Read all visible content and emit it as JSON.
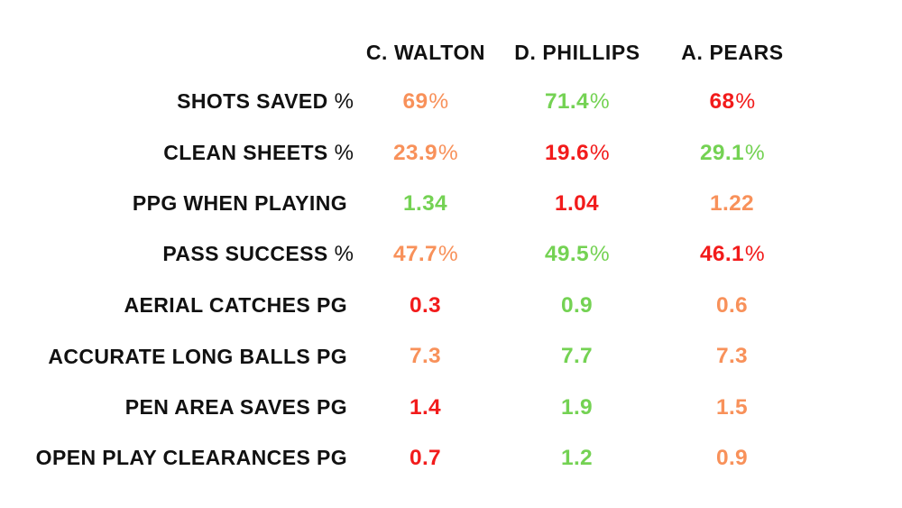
{
  "colors": {
    "orange": "#F8915A",
    "green": "#74D253",
    "red": "#F21B1B",
    "label_text": "#111111",
    "background": "#FFFFFF"
  },
  "header": {
    "players": [
      "C. WALTON",
      "D. PHILLIPS",
      "A. PEARS"
    ]
  },
  "rows": [
    {
      "label": "SHOTS SAVED",
      "label_suffix": "%",
      "values": [
        {
          "num": "69",
          "suffix": "%",
          "color": "orange"
        },
        {
          "num": "71.4",
          "suffix": "%",
          "color": "green"
        },
        {
          "num": "68",
          "suffix": "%",
          "color": "red"
        }
      ]
    },
    {
      "label": "CLEAN SHEETS",
      "label_suffix": "%",
      "values": [
        {
          "num": "23.9",
          "suffix": "%",
          "color": "orange"
        },
        {
          "num": "19.6",
          "suffix": "%",
          "color": "red"
        },
        {
          "num": "29.1",
          "suffix": "%",
          "color": "green"
        }
      ]
    },
    {
      "label": "PPG WHEN PLAYING",
      "label_suffix": "",
      "values": [
        {
          "num": "1.34",
          "suffix": "",
          "color": "green"
        },
        {
          "num": "1.04",
          "suffix": "",
          "color": "red"
        },
        {
          "num": "1.22",
          "suffix": "",
          "color": "orange"
        }
      ]
    },
    {
      "label": "PASS SUCCESS",
      "label_suffix": "%",
      "values": [
        {
          "num": "47.7",
          "suffix": "%",
          "color": "orange"
        },
        {
          "num": "49.5",
          "suffix": "%",
          "color": "green"
        },
        {
          "num": "46.1",
          "suffix": "%",
          "color": "red"
        }
      ]
    },
    {
      "label": "AERIAL CATCHES PG",
      "label_suffix": "",
      "values": [
        {
          "num": "0.3",
          "suffix": "",
          "color": "red"
        },
        {
          "num": "0.9",
          "suffix": "",
          "color": "green"
        },
        {
          "num": "0.6",
          "suffix": "",
          "color": "orange"
        }
      ]
    },
    {
      "label": "ACCURATE LONG BALLS PG",
      "label_suffix": "",
      "values": [
        {
          "num": "7.3",
          "suffix": "",
          "color": "orange"
        },
        {
          "num": "7.7",
          "suffix": "",
          "color": "green"
        },
        {
          "num": "7.3",
          "suffix": "",
          "color": "orange"
        }
      ]
    },
    {
      "label": "PEN AREA SAVES PG",
      "label_suffix": "",
      "values": [
        {
          "num": "1.4",
          "suffix": "",
          "color": "red"
        },
        {
          "num": "1.9",
          "suffix": "",
          "color": "green"
        },
        {
          "num": "1.5",
          "suffix": "",
          "color": "orange"
        }
      ]
    },
    {
      "label": "OPEN PLAY CLEARANCES PG",
      "label_suffix": "",
      "values": [
        {
          "num": "0.7",
          "suffix": "",
          "color": "red"
        },
        {
          "num": "1.2",
          "suffix": "",
          "color": "green"
        },
        {
          "num": "0.9",
          "suffix": "",
          "color": "orange"
        }
      ]
    }
  ],
  "chart_data": {
    "type": "table",
    "title": "",
    "categories": [
      "SHOTS SAVED %",
      "CLEAN SHEETS %",
      "PPG WHEN PLAYING",
      "PASS SUCCESS %",
      "AERIAL CATCHES PG",
      "ACCURATE LONG BALLS PG",
      "PEN AREA SAVES PG",
      "OPEN PLAY CLEARANCES PG"
    ],
    "series": [
      {
        "name": "C. WALTON",
        "values": [
          69,
          23.9,
          1.34,
          47.7,
          0.3,
          7.3,
          1.4,
          0.7
        ]
      },
      {
        "name": "D. PHILLIPS",
        "values": [
          71.4,
          19.6,
          1.04,
          49.5,
          0.9,
          7.7,
          1.9,
          1.2
        ]
      },
      {
        "name": "A. PEARS",
        "values": [
          68,
          29.1,
          1.22,
          46.1,
          0.6,
          7.3,
          1.5,
          0.9
        ]
      }
    ],
    "cell_colors": [
      [
        "orange",
        "green",
        "red"
      ],
      [
        "orange",
        "red",
        "green"
      ],
      [
        "green",
        "red",
        "orange"
      ],
      [
        "orange",
        "green",
        "red"
      ],
      [
        "red",
        "green",
        "orange"
      ],
      [
        "orange",
        "green",
        "orange"
      ],
      [
        "red",
        "green",
        "orange"
      ],
      [
        "red",
        "green",
        "orange"
      ]
    ]
  }
}
